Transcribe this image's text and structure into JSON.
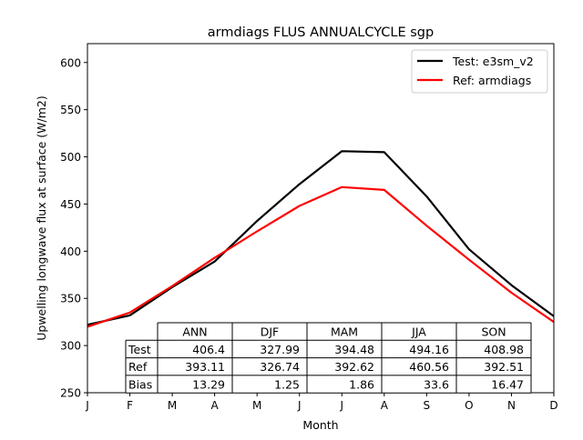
{
  "chart_data": {
    "type": "line",
    "title": "armdiags FLUS ANNUALCYCLE sgp",
    "xlabel": "Month",
    "ylabel": "Upwelling longwave flux at surface (W/m2)",
    "x": [
      1,
      2,
      3,
      4,
      5,
      6,
      7,
      8,
      9,
      10,
      11,
      12,
      13
    ],
    "x_ticks": [
      "J",
      "F",
      "M",
      "A",
      "M",
      "J",
      "J",
      "A",
      "S",
      "O",
      "N",
      "D"
    ],
    "xlim": [
      1,
      12
    ],
    "ylim": [
      250,
      620
    ],
    "y_ticks": [
      250,
      300,
      350,
      400,
      450,
      500,
      550,
      600
    ],
    "legend_position": "top-right",
    "series": [
      {
        "name": "Test: e3sm_v2",
        "color": "#000000",
        "values": [
          322,
          332,
          362,
          389,
          432,
          471,
          506,
          505,
          458,
          402,
          364,
          331,
          322
        ]
      },
      {
        "name": "Ref: armdiags",
        "color": "#ff0000",
        "values": [
          320,
          335,
          363,
          393,
          421,
          448,
          468,
          465,
          427,
          391,
          356,
          325,
          320
        ]
      }
    ],
    "table": {
      "columns": [
        "ANN",
        "DJF",
        "MAM",
        "JJA",
        "SON"
      ],
      "rows": [
        {
          "label": "Test",
          "values": [
            "406.4",
            "327.99",
            "394.48",
            "494.16",
            "408.98"
          ]
        },
        {
          "label": "Ref",
          "values": [
            "393.11",
            "326.74",
            "392.62",
            "460.56",
            "392.51"
          ]
        },
        {
          "label": "Bias",
          "values": [
            "13.29",
            "1.25",
            "1.86",
            "33.6",
            "16.47"
          ]
        }
      ]
    }
  }
}
